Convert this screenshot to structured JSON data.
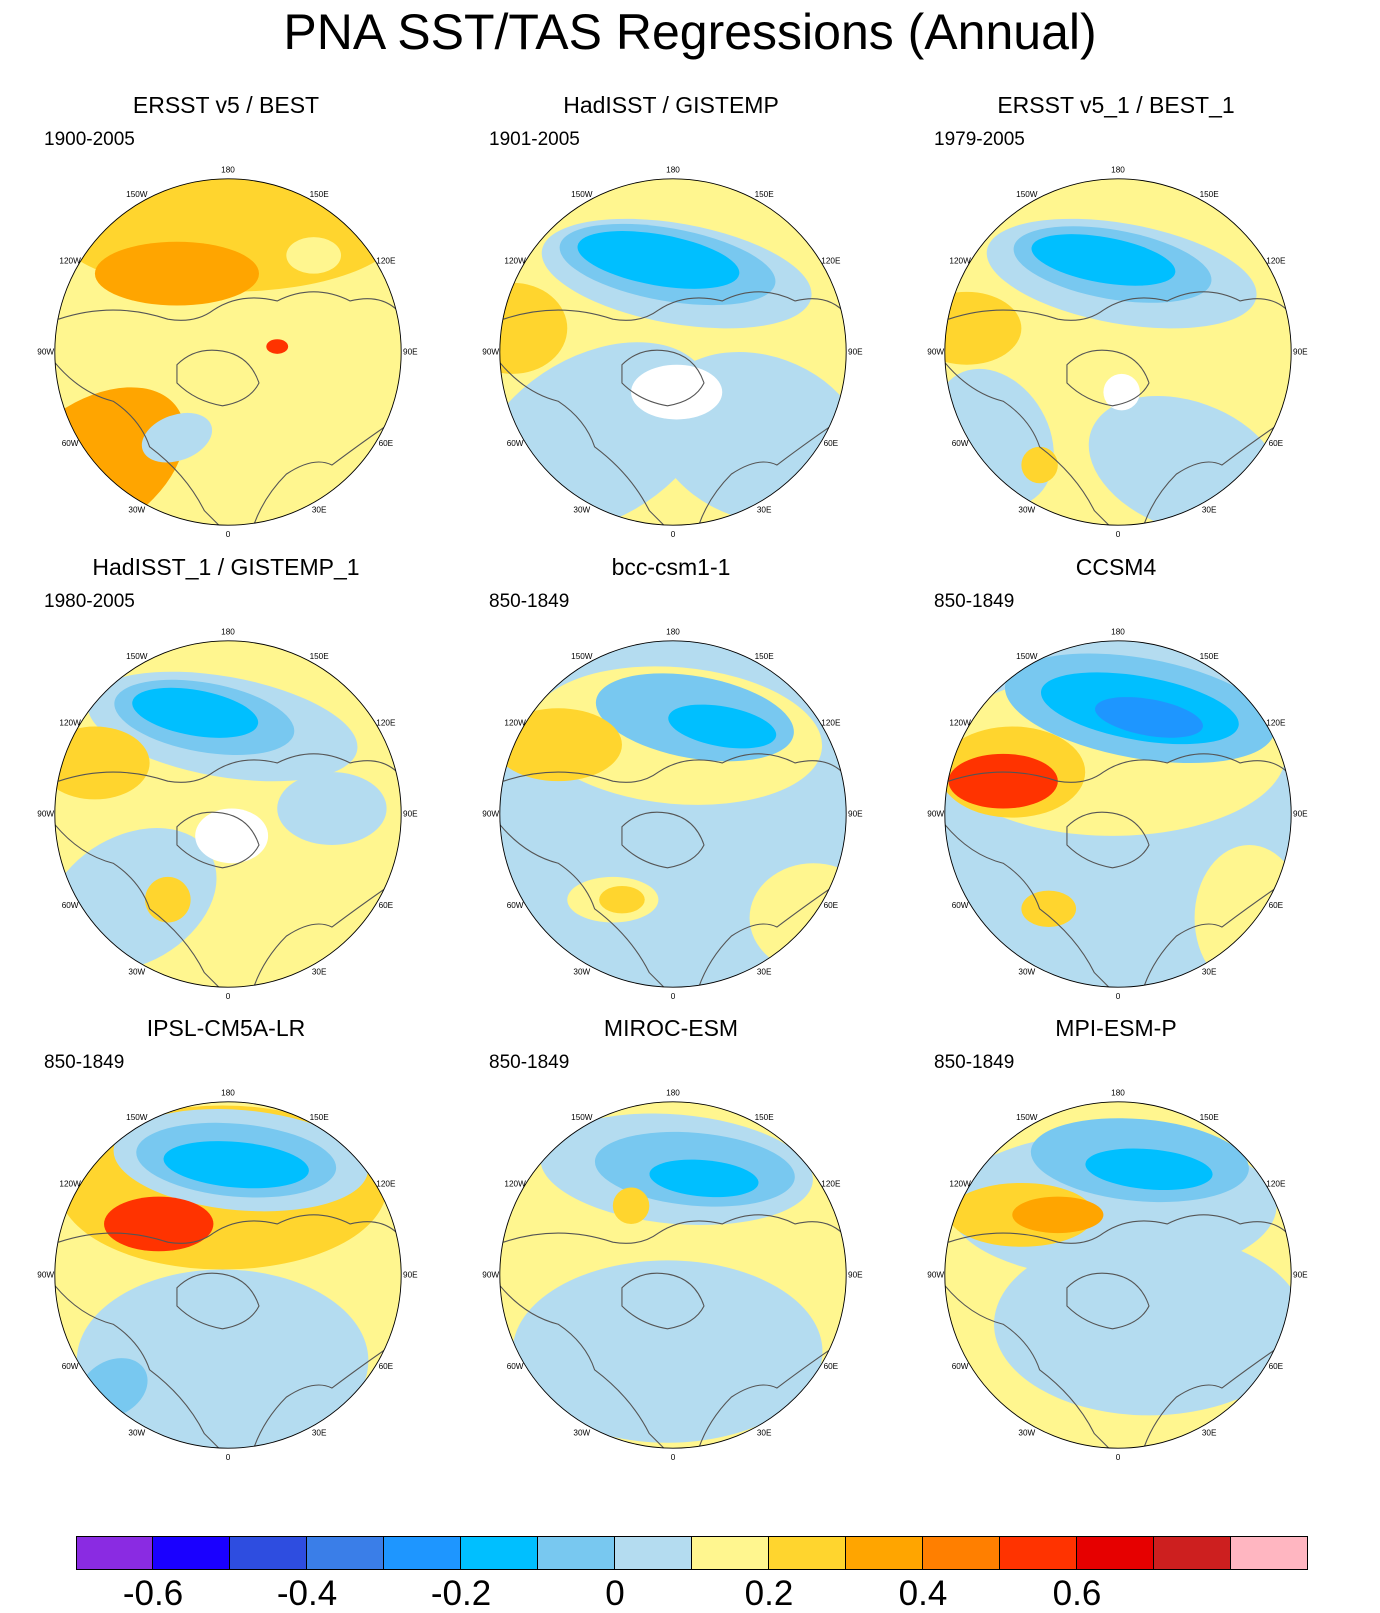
{
  "title": "PNA SST/TAS Regressions (Annual)",
  "longitude_labels": [
    "180",
    "150E",
    "120E",
    "90E",
    "60E",
    "30E",
    "0",
    "30W",
    "60W",
    "90W",
    "120W",
    "150W"
  ],
  "panels": [
    {
      "title": "ERSST v5 / BEST",
      "period": "1900-2005"
    },
    {
      "title": "HadISST / GISTEMP",
      "period": "1901-2005"
    },
    {
      "title": "ERSST v5_1 / BEST_1",
      "period": "1979-2005"
    },
    {
      "title": "HadISST_1 / GISTEMP_1",
      "period": "1980-2005"
    },
    {
      "title": "bcc-csm1-1",
      "period": "850-1849"
    },
    {
      "title": "CCSM4",
      "period": "850-1849"
    },
    {
      "title": "IPSL-CM5A-LR",
      "period": "850-1849"
    },
    {
      "title": "MIROC-ESM",
      "period": "850-1849"
    },
    {
      "title": "MPI-ESM-P",
      "period": "850-1849"
    }
  ],
  "colorbar": {
    "colors": [
      "#8a2be2",
      "#1a00ff",
      "#2e4de0",
      "#3a7ee8",
      "#1e96ff",
      "#00bfff",
      "#78c8f0",
      "#b4dcf0",
      "#fff68f",
      "#ffd52e",
      "#ffa500",
      "#ff7f00",
      "#ff3300",
      "#e60000",
      "#cd1f1f",
      "#ffb6c1"
    ],
    "labels": [
      "-0.6",
      "-0.4",
      "-0.2",
      "0",
      "0.2",
      "0.4",
      "0.6"
    ],
    "label_values": [
      -0.6,
      -0.4,
      -0.2,
      0,
      0.2,
      0.4,
      0.6
    ]
  }
}
